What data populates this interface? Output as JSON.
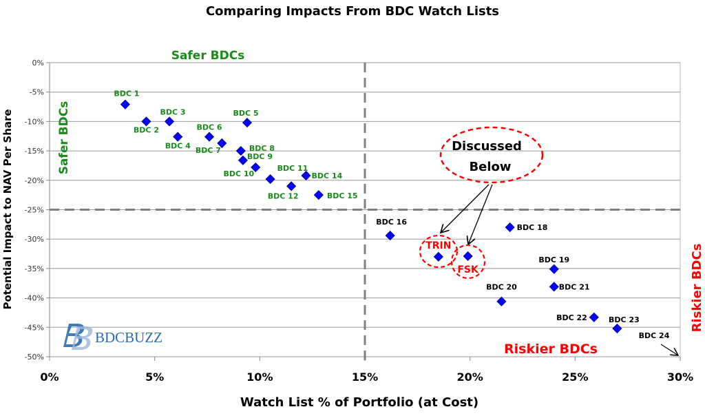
{
  "chart_data": {
    "type": "scatter",
    "title": "Comparing Impacts From BDC Watch Lists",
    "xlabel": "Watch List % of Portfolio (at Cost)",
    "ylabel": "Potential Impact to NAV Per Share",
    "xlim": [
      0,
      30
    ],
    "ylim": [
      -50,
      0
    ],
    "x_ticks": [
      "0%",
      "5%",
      "10%",
      "15%",
      "20%",
      "25%",
      "30%"
    ],
    "y_ticks": [
      "0%",
      "-5%",
      "-10%",
      "-15%",
      "-20%",
      "-25%",
      "-30%",
      "-35%",
      "-40%",
      "-45%",
      "-50%"
    ],
    "grid": "horizontal",
    "marker_color": "#0000ff",
    "thresholds": {
      "x": 15,
      "y": -25
    },
    "points": [
      {
        "label": "BDC 1",
        "x": 3.6,
        "y": -7.1,
        "group": "safer"
      },
      {
        "label": "BDC 2",
        "x": 4.6,
        "y": -10.0,
        "group": "safer"
      },
      {
        "label": "BDC 3",
        "x": 5.7,
        "y": -10.0,
        "group": "safer"
      },
      {
        "label": "BDC 4",
        "x": 6.1,
        "y": -12.6,
        "group": "safer"
      },
      {
        "label": "BDC 5",
        "x": 9.4,
        "y": -10.2,
        "group": "safer"
      },
      {
        "label": "BDC 6",
        "x": 7.6,
        "y": -12.6,
        "group": "safer"
      },
      {
        "label": "BDC 7",
        "x": 8.2,
        "y": -13.7,
        "group": "safer"
      },
      {
        "label": "BDC 8",
        "x": 9.1,
        "y": -15.0,
        "group": "safer"
      },
      {
        "label": "BDC 9",
        "x": 9.2,
        "y": -16.6,
        "group": "safer"
      },
      {
        "label": "BDC 10",
        "x": 9.8,
        "y": -17.8,
        "group": "safer"
      },
      {
        "label": "BDC 11",
        "x": 10.5,
        "y": -19.8,
        "group": "safer"
      },
      {
        "label": "BDC 12",
        "x": 11.5,
        "y": -21.0,
        "group": "safer"
      },
      {
        "label": "BDC 14",
        "x": 12.2,
        "y": -19.2,
        "group": "safer"
      },
      {
        "label": "BDC 15",
        "x": 12.8,
        "y": -22.5,
        "group": "safer"
      },
      {
        "label": "BDC 16",
        "x": 16.2,
        "y": -29.4,
        "group": "riskier"
      },
      {
        "label": "TRIN",
        "x": 18.5,
        "y": -33.0,
        "group": "highlight"
      },
      {
        "label": "FSK",
        "x": 19.9,
        "y": -32.9,
        "group": "highlight"
      },
      {
        "label": "BDC 18",
        "x": 21.9,
        "y": -28.0,
        "group": "riskier"
      },
      {
        "label": "BDC 19",
        "x": 24.0,
        "y": -35.1,
        "group": "riskier"
      },
      {
        "label": "BDC 20",
        "x": 21.5,
        "y": -40.6,
        "group": "riskier"
      },
      {
        "label": "BDC 21",
        "x": 24.0,
        "y": -38.1,
        "group": "riskier"
      },
      {
        "label": "BDC 22",
        "x": 25.9,
        "y": -43.3,
        "group": "riskier"
      },
      {
        "label": "BDC 23",
        "x": 27.0,
        "y": -45.2,
        "group": "riskier"
      }
    ],
    "offchart_label": "BDC 24",
    "annotations": {
      "safer_top": "Safer BDCs",
      "safer_left": "Safer BDCs",
      "riskier_bottom": "Riskier BDCs",
      "riskier_right": "Riskier BDCs",
      "callout_line1": "Discussed",
      "callout_line2": "Below"
    },
    "colors": {
      "safer": "#1a8a1a",
      "riskier": "#000000",
      "highlight": "#ff0000"
    }
  },
  "logo": {
    "text": "BDCBUZZ"
  }
}
